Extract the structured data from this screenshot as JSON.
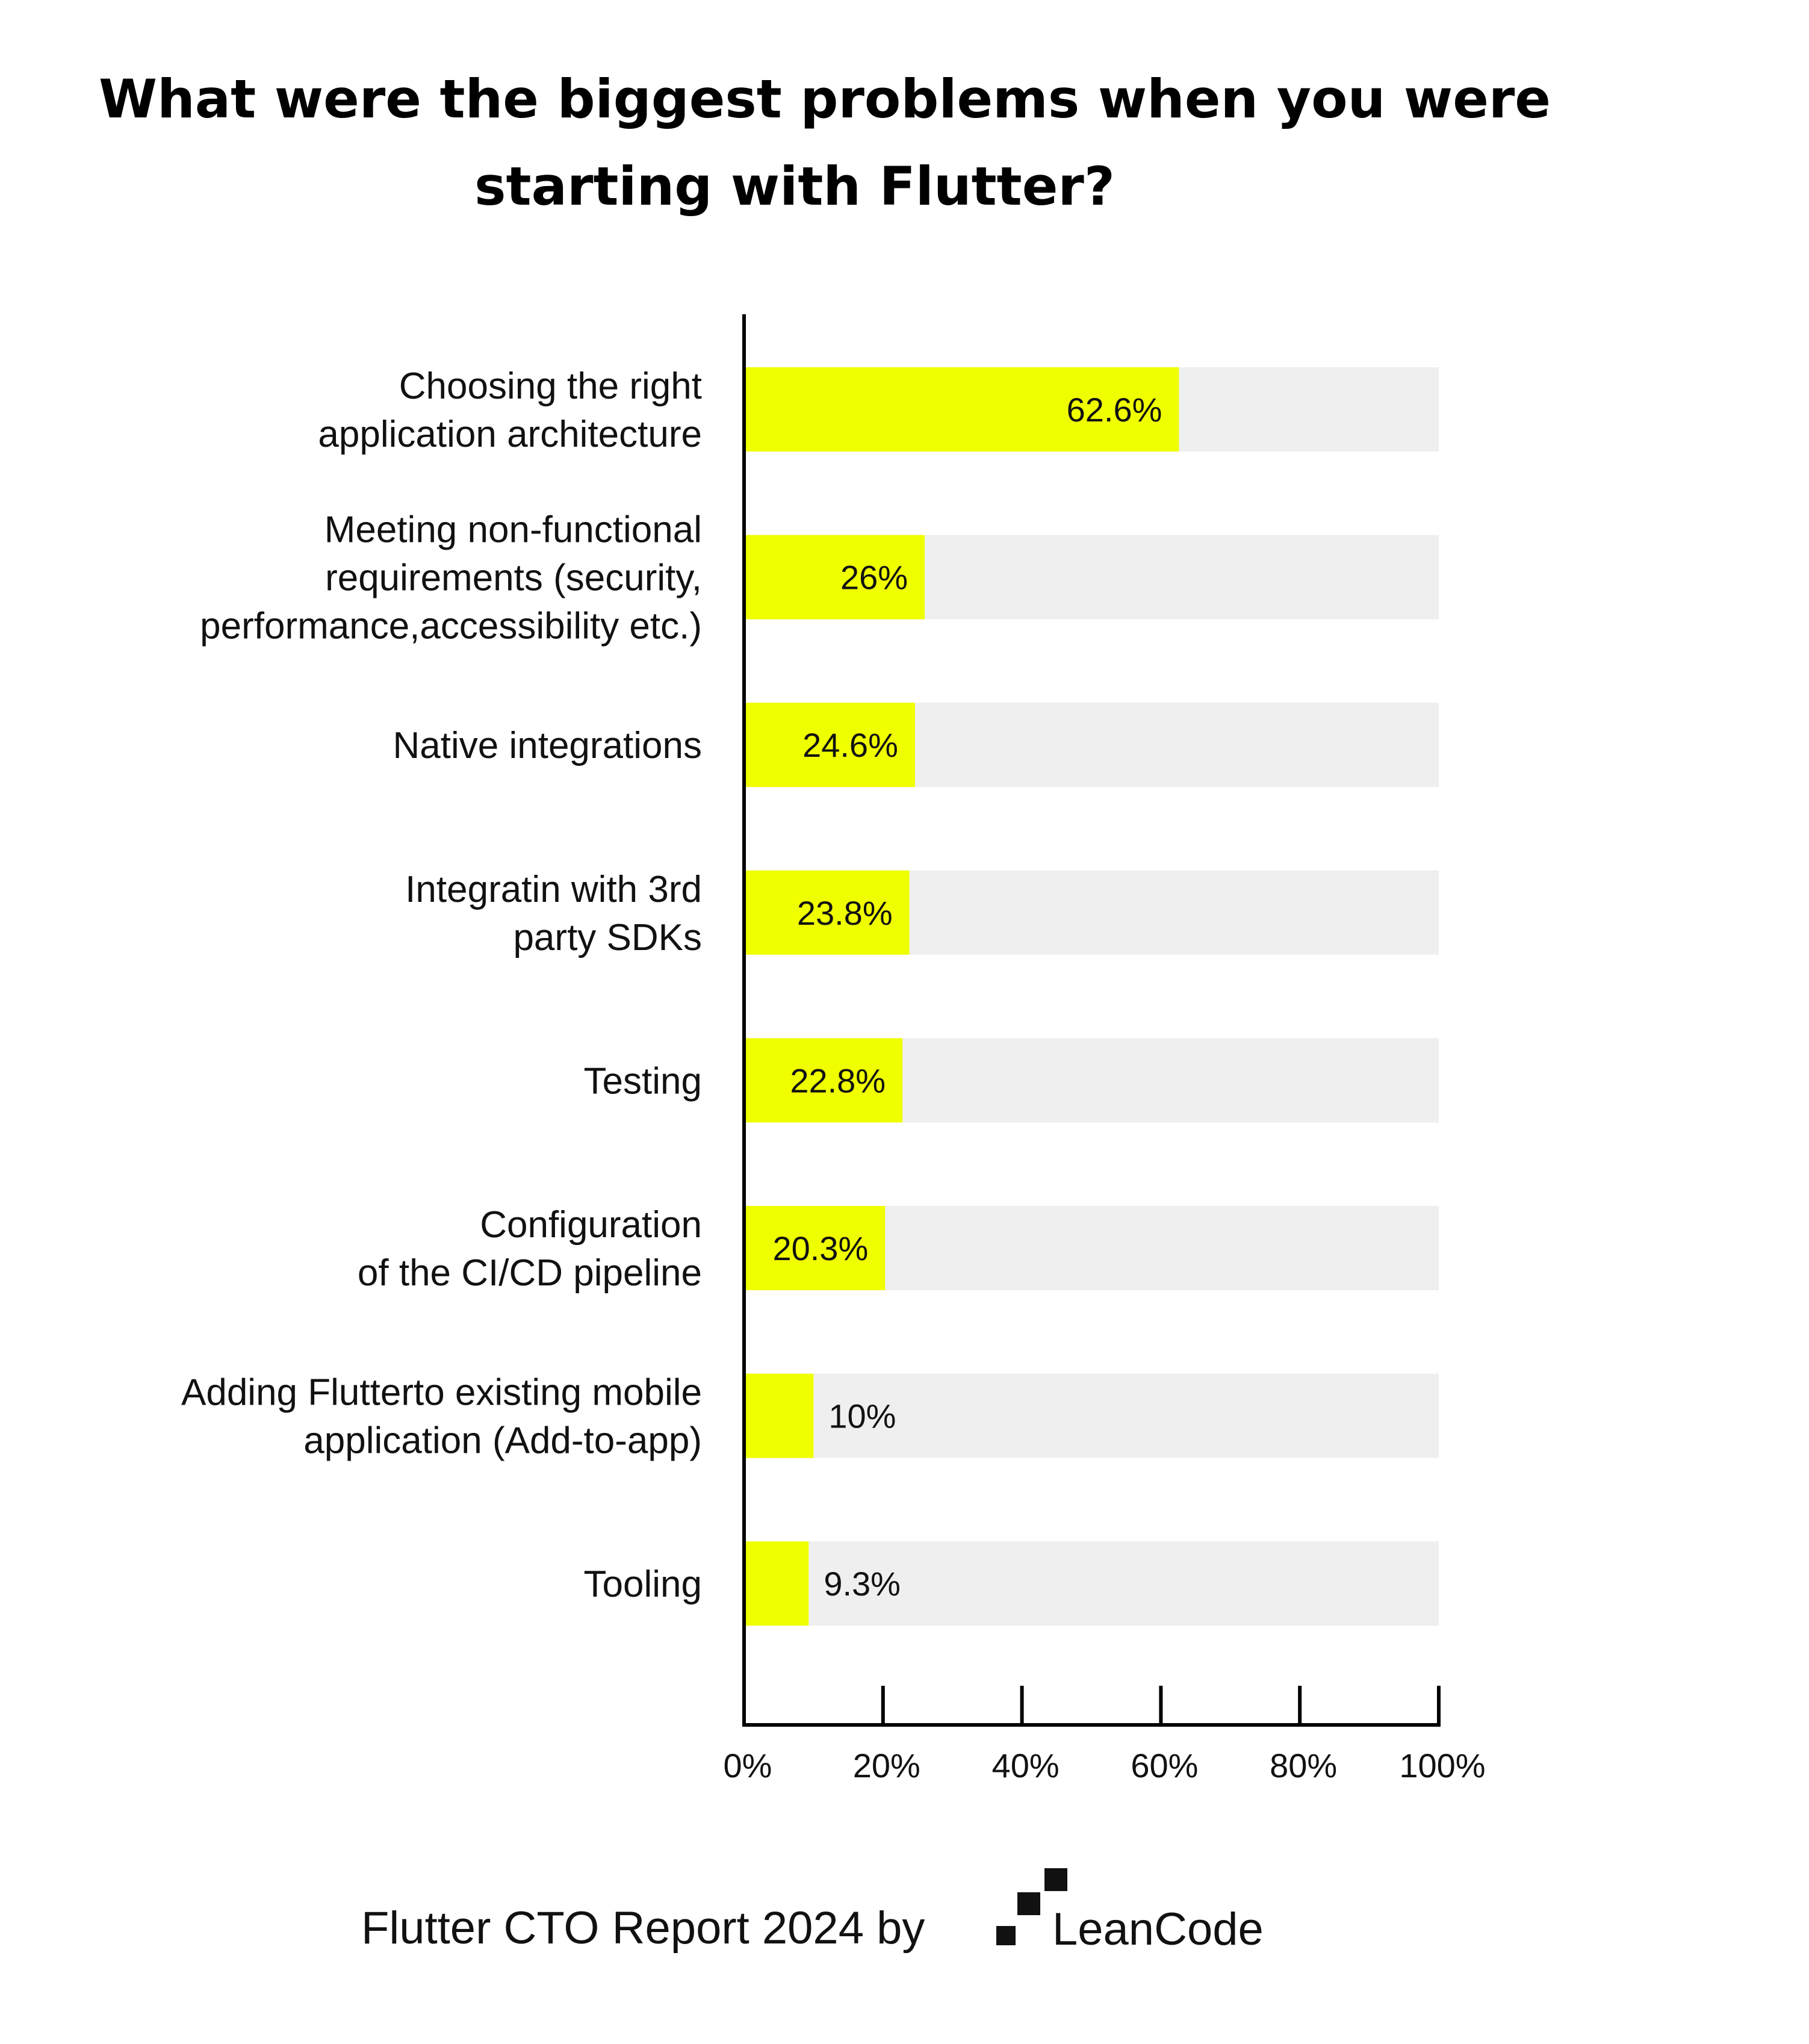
{
  "chart_data": {
    "type": "bar",
    "orientation": "horizontal",
    "title_lines": [
      "What were the biggest problems when you were",
      "starting with Flutter?"
    ],
    "categories": [
      [
        "Choosing the right",
        "application architecture"
      ],
      [
        "Meeting non-functional",
        "requirements (security,",
        "performance,accessibility etc.)"
      ],
      [
        "Native integrations"
      ],
      [
        "Integratin with 3rd",
        "party SDKs"
      ],
      [
        "Testing"
      ],
      [
        "Configuration",
        "of the CI/CD pipeline"
      ],
      [
        "Adding Flutterto existing mobile",
        "application (Add-to-app)"
      ],
      [
        "Tooling"
      ]
    ],
    "values": [
      62.6,
      26,
      24.6,
      23.8,
      22.8,
      20.3,
      10,
      9.3
    ],
    "value_labels": [
      "62.6%",
      "26%",
      "24.6%",
      "23.8%",
      "22.8%",
      "20.3%",
      "10%",
      "9.3%"
    ],
    "xlim": [
      0,
      100
    ],
    "x_ticks": [
      0,
      20,
      40,
      60,
      80,
      100
    ],
    "x_tick_labels": [
      "0%",
      "20%",
      "40%",
      "60%",
      "80%",
      "100%"
    ],
    "grid": false,
    "legend": "none",
    "colors": {
      "bar": "#f0ff00",
      "track": "#efefef",
      "axis": "#000000",
      "text": "#111111"
    }
  },
  "footer": {
    "text": "Flutter CTO Report 2024 by",
    "brand": "LeanCode",
    "logo_icon": "leancode-logo-icon"
  }
}
